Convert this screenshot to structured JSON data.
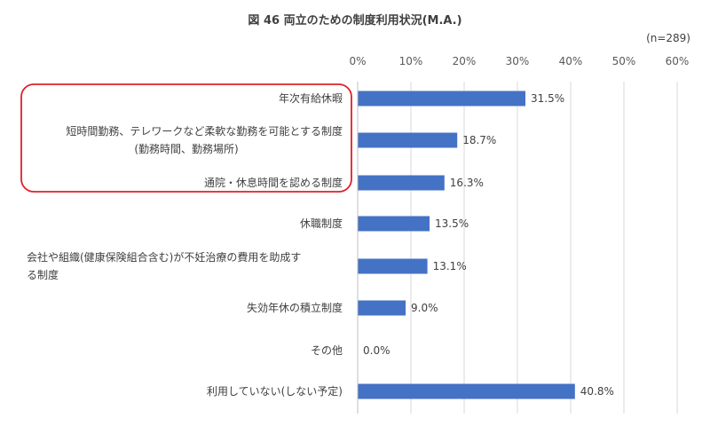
{
  "chart_data": {
    "type": "bar",
    "orientation": "horizontal",
    "title": "図 46 両立のための制度利用状況(M.A.)",
    "note": "(n=289)",
    "categories": [
      [
        "年次有給休暇"
      ],
      [
        "短時間勤務、テレワークなど柔軟な勤務を可能とする制度",
        "(勤務時間、勤務場所)"
      ],
      [
        "通院・休息時間を認める制度"
      ],
      [
        "休職制度"
      ],
      [
        "会社や組織(健康保険組合含む)が不妊治療の費用を助成す",
        "る制度"
      ],
      [
        "失効年休の積立制度"
      ],
      [
        "その他"
      ],
      [
        "利用していない(しない予定)"
      ]
    ],
    "values": [
      31.5,
      18.7,
      16.3,
      13.5,
      13.1,
      9.0,
      0.0,
      40.8
    ],
    "value_labels": [
      "31.5%",
      "18.7%",
      "16.3%",
      "13.5%",
      "13.1%",
      "9.0%",
      "0.0%",
      "40.8%"
    ],
    "xlim": [
      0,
      60
    ],
    "xticks": [
      0,
      10,
      20,
      30,
      40,
      50,
      60
    ],
    "xtick_labels": [
      "0%",
      "10%",
      "20%",
      "30%",
      "40%",
      "50%",
      "60%"
    ],
    "tick_position": "top",
    "grid": true,
    "highlight": {
      "categories": [
        0,
        1,
        2
      ],
      "color": "#e0202a"
    },
    "bar_color": "#4472c4"
  }
}
